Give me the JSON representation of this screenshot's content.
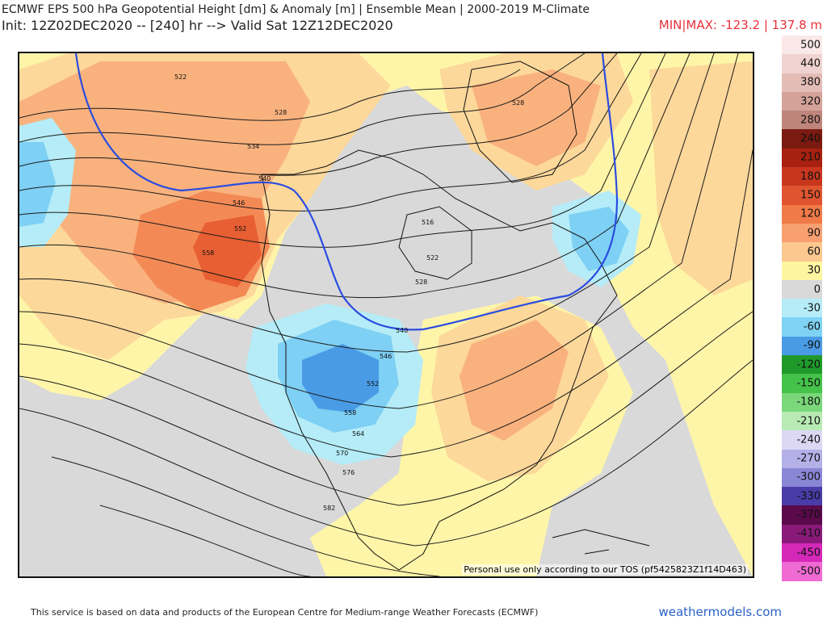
{
  "header": {
    "title": "ECMWF EPS 500 hPa Geopotential Height [dm] & Anomaly [m] | Ensemble Mean | 2000-2019 M-Climate",
    "init": "Init: 12Z02DEC2020 -- [240] hr --> Valid Sat 12Z12DEC2020",
    "minmax": "MIN|MAX: -123.2 | 137.8 m"
  },
  "map": {
    "tos": "Personal use only according to our TOS (pf5425823Z1f14D463)",
    "contour_labels": [
      "522",
      "528",
      "528",
      "534",
      "540",
      "546",
      "552",
      "558",
      "516",
      "522",
      "528",
      "540",
      "546",
      "552",
      "558",
      "564",
      "570",
      "576",
      "582"
    ],
    "colors": {
      "land": "#ffffff",
      "neutral": "#d9d9d9",
      "anom_pos_30": "#fff5a8",
      "anom_pos_60": "#fcd89a",
      "anom_pos_90": "#f9b27e",
      "anom_pos_120": "#f38a55",
      "anom_pos_150": "#e85f33",
      "anom_neg_30": "#b5ecf7",
      "anom_neg_60": "#7ed0f4",
      "anom_neg_90": "#4a9be6",
      "contour": "#222222",
      "highlight_contour": "#2a4ce0"
    }
  },
  "colorbar": [
    {
      "label": "500",
      "color": "#fbe8e8"
    },
    {
      "label": "440",
      "color": "#f0d3d0"
    },
    {
      "label": "380",
      "color": "#e3bcb6"
    },
    {
      "label": "320",
      "color": "#d4a299"
    },
    {
      "label": "280",
      "color": "#bf857a"
    },
    {
      "label": "240",
      "color": "#7a1a10"
    },
    {
      "label": "210",
      "color": "#a82010"
    },
    {
      "label": "180",
      "color": "#c8361e"
    },
    {
      "label": "150",
      "color": "#e05530"
    },
    {
      "label": "120",
      "color": "#f07a48"
    },
    {
      "label": "90",
      "color": "#f8a070"
    },
    {
      "label": "60",
      "color": "#fcc890"
    },
    {
      "label": "30",
      "color": "#fff5a0"
    },
    {
      "label": "0",
      "color": "#d9d9d9"
    },
    {
      "label": "-30",
      "color": "#b5ecf7"
    },
    {
      "label": "-60",
      "color": "#7fd2f4"
    },
    {
      "label": "-90",
      "color": "#4a9be6"
    },
    {
      "label": "-120",
      "color": "#1f9a2a"
    },
    {
      "label": "-150",
      "color": "#44c24a"
    },
    {
      "label": "-180",
      "color": "#7ad87a"
    },
    {
      "label": "-210",
      "color": "#b8eab4"
    },
    {
      "label": "-240",
      "color": "#dcd8f4"
    },
    {
      "label": "-270",
      "color": "#b4b0e8"
    },
    {
      "label": "-300",
      "color": "#8a86d6"
    },
    {
      "label": "-330",
      "color": "#4a3ca8"
    },
    {
      "label": "-370",
      "color": "#5a0a4a"
    },
    {
      "label": "-410",
      "color": "#8a1a7a"
    },
    {
      "label": "-450",
      "color": "#d428b8"
    },
    {
      "label": "-500",
      "color": "#f06ad4"
    }
  ],
  "footer": {
    "credit": "This service is based on data and products of the European Centre for Medium-range Weather Forecasts (ECMWF)",
    "brand": "weathermodels.com"
  }
}
